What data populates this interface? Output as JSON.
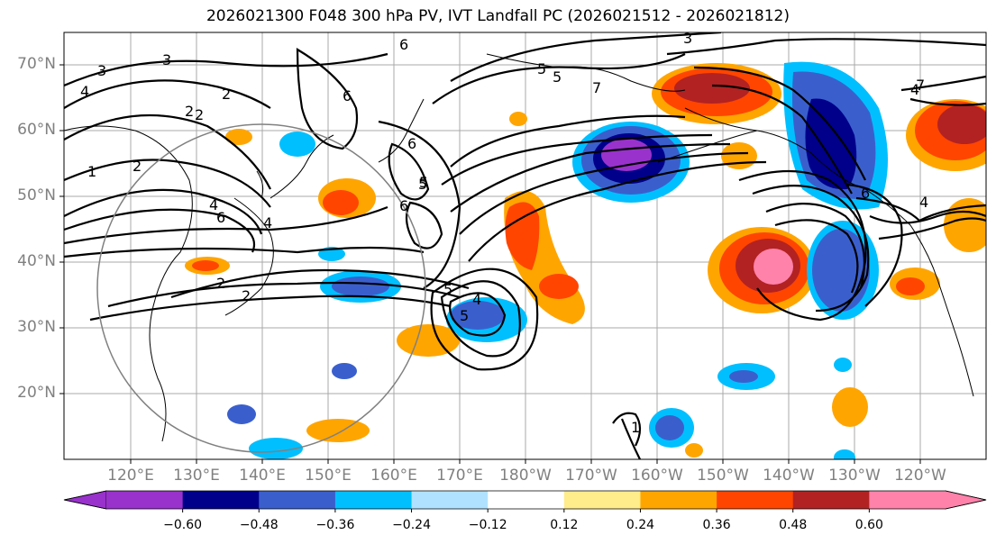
{
  "title": "2026021300 F048 300 hPa PV, IVT Landfall PC (2026021512 - 2026021812)",
  "map": {
    "lat_ticks": [
      "70°N",
      "60°N",
      "50°N",
      "40°N",
      "30°N",
      "20°N"
    ],
    "lon_ticks": [
      "120°E",
      "130°E",
      "140°E",
      "150°E",
      "160°E",
      "170°E",
      "180°W",
      "170°W",
      "160°W",
      "150°W",
      "140°W",
      "130°W",
      "120°W"
    ],
    "contour_labels": [
      "3",
      "3",
      "3",
      "4",
      "2",
      "2",
      "6",
      "5",
      "6",
      "7",
      "5",
      "6",
      "5",
      "6",
      "4",
      "6",
      "4",
      "2",
      "1",
      "2",
      "5",
      "2",
      "4",
      "5",
      "5",
      "4",
      "6",
      "4",
      "7",
      "2",
      "1"
    ]
  },
  "colorbar": {
    "ticks": [
      "−0.60",
      "−0.48",
      "−0.36",
      "−0.24",
      "−0.12",
      "0.12",
      "0.24",
      "0.36",
      "0.48",
      "0.60"
    ],
    "colors": [
      "#9932cc",
      "#00008b",
      "#3a5fcd",
      "#00bfff",
      "#b0e2ff",
      "#ffffff",
      "#ffec8b",
      "#ffa500",
      "#ff4500",
      "#b22222",
      "#ff82ab"
    ],
    "under_color": "#9932cc",
    "over_color": "#ff82ab"
  },
  "legend": {
    "shading_colors": {
      "neg_060": "#9932cc",
      "neg_048": "#00008b",
      "neg_036": "#3a5fcd",
      "neg_024": "#00bfff",
      "neg_012": "#b0e2ff",
      "pos_012": "#ffec8b",
      "pos_024": "#ffa500",
      "pos_036": "#ff4500",
      "pos_048": "#b22222",
      "pos_060": "#ff82ab"
    }
  }
}
